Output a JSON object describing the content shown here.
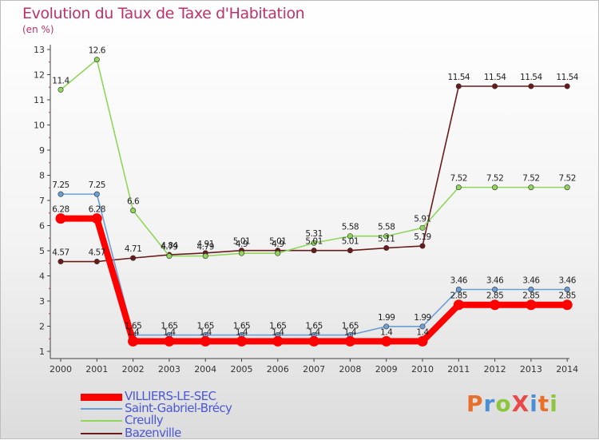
{
  "title": "Evolution du Taux de Taxe d'Habitation",
  "subtitle": "(en %)",
  "logo": {
    "text": "ProXiti",
    "colors": [
      "#e8702a",
      "#4a8fd6",
      "#8cc63f",
      "#e84a4a",
      "#4a8fd6",
      "#e8702a",
      "#8cc63f"
    ]
  },
  "chart_data": {
    "type": "line",
    "title": "Evolution du Taux de Taxe d'Habitation",
    "ylabel": "(en %)",
    "xlabel": "",
    "x": [
      "2000",
      "2001",
      "2002",
      "2003",
      "2004",
      "2005",
      "2006",
      "2007",
      "2008",
      "2009",
      "2010",
      "2011",
      "2012",
      "2013",
      "2014"
    ],
    "ylim": [
      1,
      13
    ],
    "yticks": [
      "1",
      "2",
      "3",
      "4",
      "5",
      "6",
      "7",
      "8",
      "9",
      "10",
      "11",
      "12",
      "13"
    ],
    "grid": false,
    "legend_position": "bottom-left",
    "series": [
      {
        "name": "VILLIERS-LE-SEC",
        "color": "#ff0000",
        "values": [
          6.28,
          6.28,
          1.4,
          1.4,
          1.4,
          1.4,
          1.4,
          1.4,
          1.4,
          1.4,
          1.4,
          2.85,
          2.85,
          2.85,
          2.85
        ],
        "labels": [
          "6.28",
          "6.28",
          "1.4",
          "1.4",
          "1.4",
          "1.4",
          "1.4",
          "1.4",
          "1.4",
          "1.4",
          "1.4",
          "2.85",
          "2.85",
          "2.85",
          "2.85"
        ]
      },
      {
        "name": "Saint-Gabriel-Brécy",
        "color": "#6b9ed6",
        "values": [
          7.25,
          7.25,
          1.65,
          1.65,
          1.65,
          1.65,
          1.65,
          1.65,
          1.65,
          1.99,
          1.99,
          3.46,
          3.46,
          3.46,
          3.46
        ],
        "labels": [
          "7.25",
          "7.25",
          "1.65",
          "1.65",
          "1.65",
          "1.65",
          "1.65",
          "1.65",
          "1.65",
          "1.99",
          "1.99",
          "3.46",
          "3.46",
          "3.46",
          "3.46"
        ]
      },
      {
        "name": "Creully",
        "color": "#8fd65a",
        "values": [
          11.4,
          12.6,
          6.6,
          4.79,
          4.79,
          4.9,
          4.9,
          5.31,
          5.58,
          5.58,
          5.91,
          7.52,
          7.52,
          7.52,
          7.52
        ],
        "labels": [
          "11.4",
          "12.6",
          "6.6",
          "4.79",
          "4.79",
          "4.9",
          "4.9",
          "5.31",
          "5.58",
          "5.58",
          "5.91",
          "7.52",
          "7.52",
          "7.52",
          "7.52"
        ]
      },
      {
        "name": "Bazenville",
        "color": "#6b1a1a",
        "values": [
          4.57,
          4.57,
          4.71,
          4.84,
          4.91,
          5.01,
          5.01,
          5.01,
          5.01,
          5.11,
          5.19,
          11.54,
          11.54,
          11.54,
          11.54
        ],
        "labels": [
          "4.57",
          "4.57",
          "4.71",
          "4.84",
          "4.91",
          "5.01",
          "5.01",
          "5.01",
          "5.01",
          "5.11",
          "5.19",
          "11.54",
          "11.54",
          "11.54",
          "11.54"
        ]
      }
    ]
  }
}
